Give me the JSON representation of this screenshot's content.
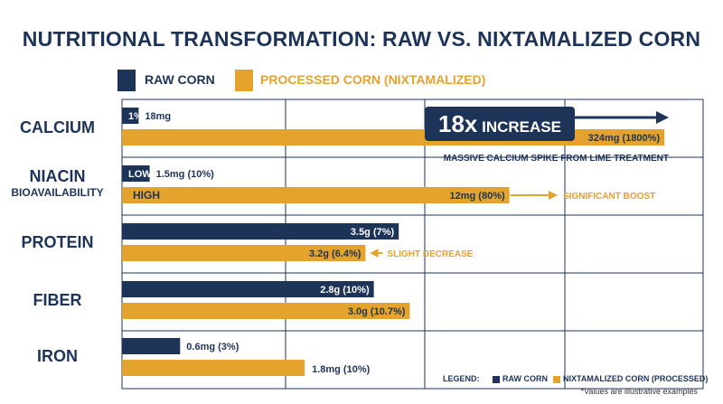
{
  "colors": {
    "raw": "#1e3358",
    "processed": "#e3a32c",
    "title": "#1e3358",
    "grid": "#1e3358"
  },
  "title": "NUTRITIONAL TRANSFORMATION: RAW VS. NIXTAMALIZED CORN",
  "legend": {
    "raw": "RAW CORN",
    "processed": "PROCESSED CORN (NIXTAMALIZED)"
  },
  "categories": {
    "calcium": "CALCIUM",
    "niacin": "NIACIN",
    "niacin_sub": "BIOAVAILABILITY",
    "protein": "PROTEIN",
    "fiber": "FIBER",
    "iron": "IRON"
  },
  "bottom_legend": {
    "label": "LEGEND:",
    "raw": "RAW CORN",
    "processed": "NIXTAMALIZED CORN (PROCESSED)"
  },
  "footnote": "*Values are illustrative examples",
  "chart_data": {
    "type": "bar",
    "orientation": "horizontal",
    "categories": [
      "CALCIUM",
      "NIACIN BIOAVAILABILITY",
      "PROTEIN",
      "FIBER",
      "IRON"
    ],
    "series": [
      {
        "name": "RAW CORN",
        "values": [
          6,
          10,
          100,
          91,
          21
        ]
      },
      {
        "name": "PROCESSED CORN (NIXTAMALIZED)",
        "values": [
          196,
          140,
          88,
          104,
          66
        ]
      }
    ],
    "xlim": [
      0,
      210
    ],
    "grid": true,
    "legend_position": "top-left",
    "bar_labels": {
      "raw_inside": [
        "1%",
        "LOW",
        "3.5g (7%)",
        "2.8g (10%)",
        ""
      ],
      "raw_outside": [
        "18mg",
        "1.5mg (10%)",
        "",
        "",
        "0.6mg (3%)"
      ],
      "processed_inside": [
        "324mg (1800%)",
        "12mg (80%)",
        "3.2g (6.4%)",
        "3.0g (10.7%)",
        ""
      ],
      "processed_inside_left": [
        "",
        "HIGH",
        "",
        "",
        ""
      ],
      "processed_outside": [
        "",
        "",
        "",
        "",
        "1.8mg (10%)"
      ]
    },
    "annotations": {
      "calcium_callout": "18x INCREASE",
      "calcium_callout_big": "18x",
      "calcium_callout_small": "INCREASE",
      "calcium_note": "MASSIVE CALCIUM SPIKE FROM LIME TREATMENT",
      "niacin_note": "SIGNIFICANT BOOST",
      "protein_note": "SLIGHT DECREASE"
    }
  }
}
